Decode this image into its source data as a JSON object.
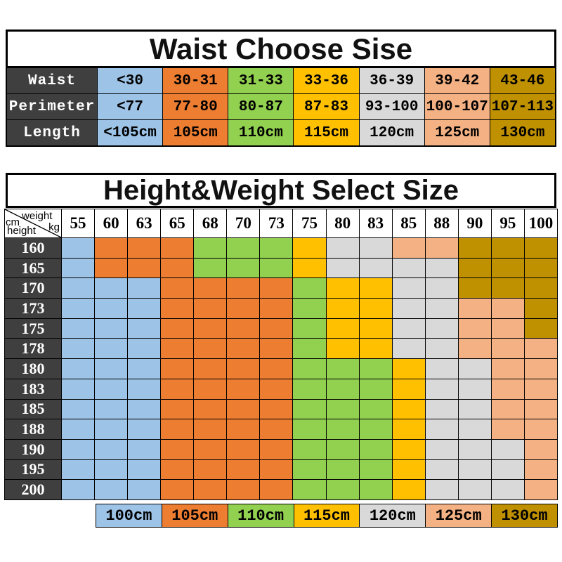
{
  "theme": {
    "background": "#FFFFFF",
    "header_bg": "#3F3F3F",
    "header_text": "#FFFFFF",
    "cell_text": "#000000",
    "border": "#000000"
  },
  "chart_data": [
    {
      "type": "table",
      "title": "Waist Choose Sise",
      "row_labels": [
        "Waist",
        "Perimeter",
        "Length"
      ],
      "rows": [
        [
          "<30",
          "30-31",
          "31-33",
          "33-36",
          "36-39",
          "39-42",
          "43-46"
        ],
        [
          "<77",
          "77-80",
          "80-87",
          "87-83",
          "93-100",
          "100-107",
          "107-113"
        ],
        [
          "<105cm",
          "105cm",
          "110cm",
          "115cm",
          "120cm",
          "125cm",
          "130cm"
        ]
      ],
      "column_colors": [
        "#9DC3E6",
        "#ED7D31",
        "#92D050",
        "#FFC000",
        "#D9D9D9",
        "#F4B183",
        "#BF9000"
      ]
    },
    {
      "type": "heatmap",
      "title": "Height&Weight Select Size",
      "xlabel_parts": {
        "label": "weight",
        "unit": "kg"
      },
      "ylabel_parts": {
        "label": "height",
        "unit": "cm"
      },
      "x_weights_kg": [
        "55",
        "60",
        "63",
        "65",
        "68",
        "70",
        "73",
        "75",
        "80",
        "83",
        "85",
        "88",
        "90",
        "95",
        "100"
      ],
      "y_heights_cm": [
        "160",
        "165",
        "170",
        "173",
        "175",
        "178",
        "180",
        "183",
        "185",
        "188",
        "190",
        "195",
        "200"
      ],
      "cell_size_cm": [
        [
          "100",
          "105",
          "105",
          "105",
          "110",
          "110",
          "110",
          "115",
          "120",
          "120",
          "125",
          "125",
          "130",
          "130",
          "130"
        ],
        [
          "100",
          "105",
          "105",
          "105",
          "110",
          "110",
          "110",
          "115",
          "120",
          "120",
          "120",
          "120",
          "130",
          "130",
          "130"
        ],
        [
          "100",
          "100",
          "100",
          "105",
          "105",
          "105",
          "105",
          "110",
          "115",
          "115",
          "120",
          "120",
          "130",
          "130",
          "130"
        ],
        [
          "100",
          "100",
          "100",
          "105",
          "105",
          "105",
          "105",
          "110",
          "115",
          "115",
          "120",
          "120",
          "125",
          "125",
          "130"
        ],
        [
          "100",
          "100",
          "100",
          "105",
          "105",
          "105",
          "105",
          "110",
          "115",
          "115",
          "120",
          "120",
          "125",
          "125",
          "130"
        ],
        [
          "100",
          "100",
          "100",
          "105",
          "105",
          "105",
          "105",
          "110",
          "115",
          "115",
          "120",
          "120",
          "125",
          "125",
          "125"
        ],
        [
          "100",
          "100",
          "100",
          "105",
          "105",
          "105",
          "105",
          "110",
          "110",
          "110",
          "115",
          "120",
          "120",
          "125",
          "125"
        ],
        [
          "100",
          "100",
          "100",
          "105",
          "105",
          "105",
          "105",
          "110",
          "110",
          "110",
          "115",
          "120",
          "120",
          "125",
          "125"
        ],
        [
          "100",
          "100",
          "100",
          "105",
          "105",
          "105",
          "105",
          "110",
          "110",
          "110",
          "115",
          "120",
          "120",
          "125",
          "125"
        ],
        [
          "100",
          "100",
          "100",
          "105",
          "105",
          "105",
          "105",
          "110",
          "110",
          "110",
          "115",
          "120",
          "120",
          "125",
          "125"
        ],
        [
          "100",
          "100",
          "100",
          "105",
          "105",
          "105",
          "105",
          "110",
          "110",
          "110",
          "115",
          "120",
          "120",
          "120",
          "125"
        ],
        [
          "100",
          "100",
          "100",
          "105",
          "105",
          "105",
          "105",
          "110",
          "110",
          "110",
          "115",
          "120",
          "120",
          "120",
          "125"
        ],
        [
          "100",
          "100",
          "100",
          "105",
          "105",
          "105",
          "105",
          "110",
          "110",
          "110",
          "115",
          "120",
          "120",
          "120",
          "125"
        ]
      ],
      "legend": [
        {
          "label": "100cm",
          "color": "#9DC3E6"
        },
        {
          "label": "105cm",
          "color": "#ED7D31"
        },
        {
          "label": "110cm",
          "color": "#92D050"
        },
        {
          "label": "115cm",
          "color": "#FFC000"
        },
        {
          "label": "120cm",
          "color": "#D9D9D9"
        },
        {
          "label": "125cm",
          "color": "#F4B183"
        },
        {
          "label": "130cm",
          "color": "#BF9000"
        }
      ],
      "legend_position": "bottom"
    }
  ]
}
